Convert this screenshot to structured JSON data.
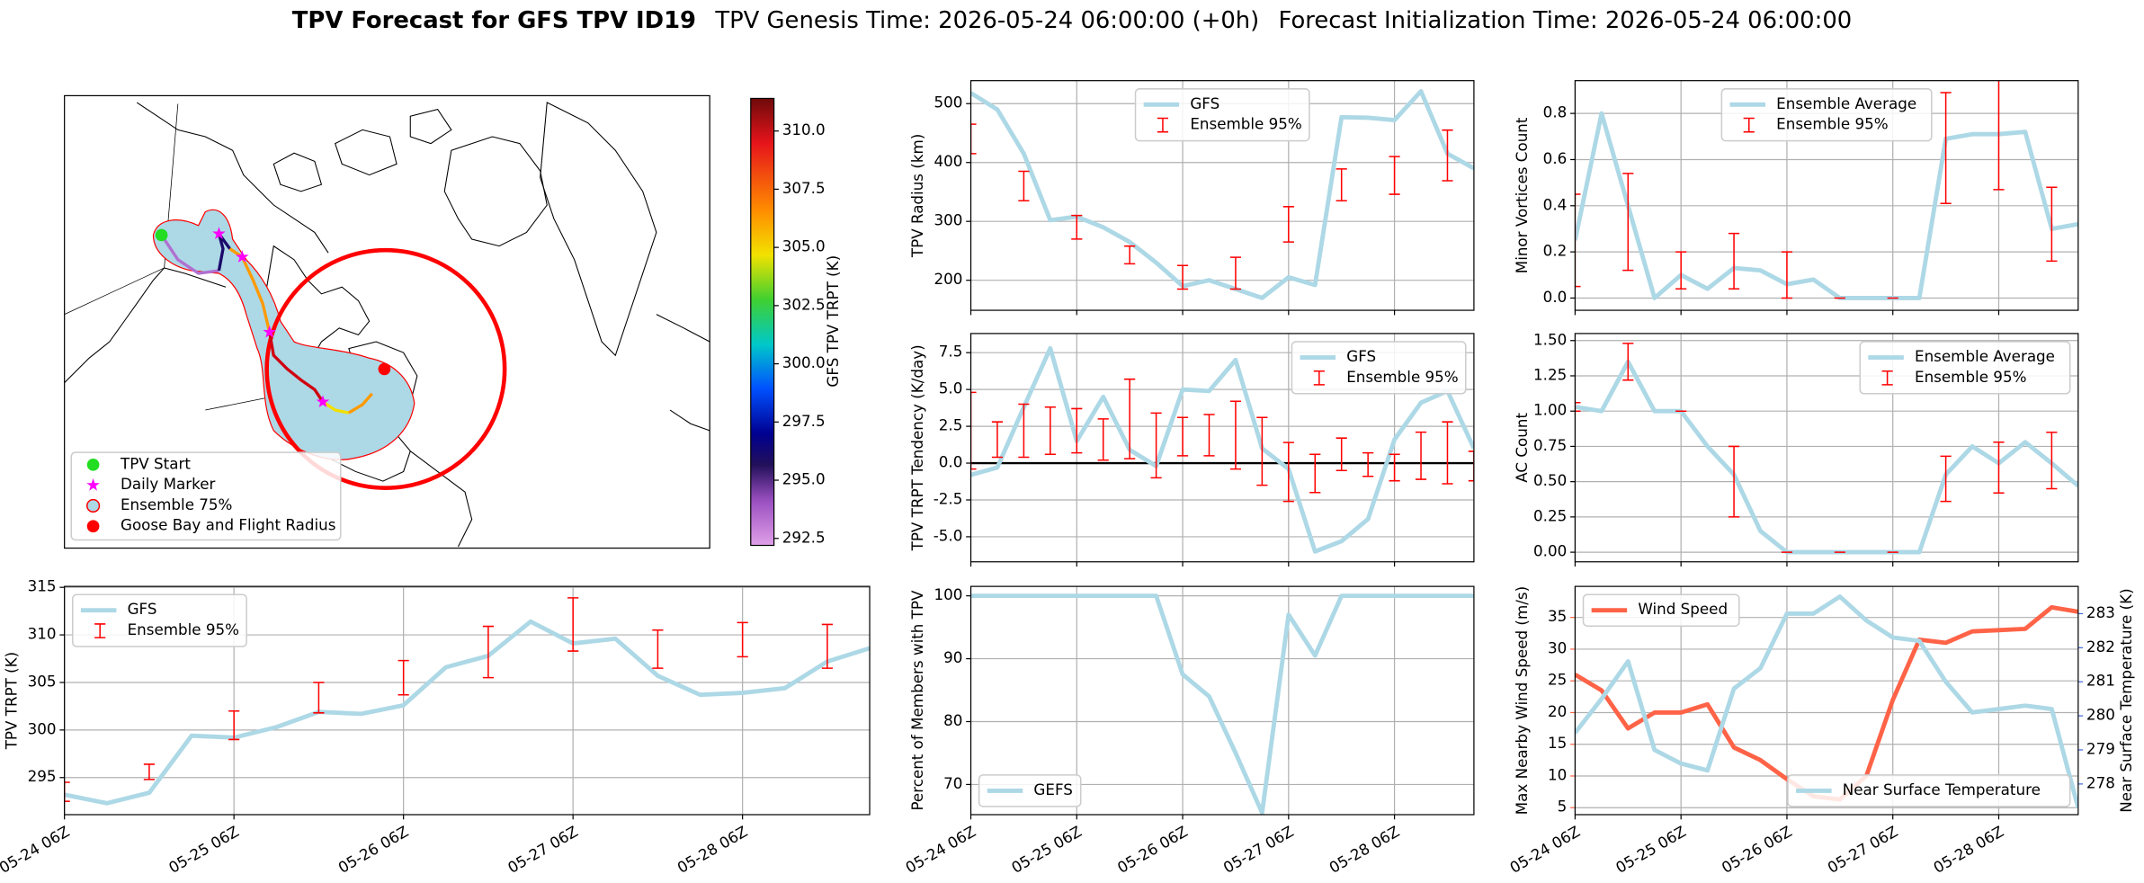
{
  "suptitle": {
    "title": "TPV Forecast for GFS TPV ID19",
    "genesis": "TPV Genesis Time: 2026-05-24 06:00:00 (+0h)",
    "init": "Forecast Initialization Time: 2026-05-24 06:00:00"
  },
  "chart_data": [
    {
      "type": "map",
      "legend": [
        "TPV Start",
        "Daily Marker",
        "Ensemble 75%",
        "Goose Bay and Flight Radius"
      ],
      "colorbar_label": "GFS TPV TRPT (K)",
      "clim": [
        292.2,
        311.4
      ],
      "colorbar_ticks": [
        292.5,
        {
          "value": 295,
          "label": "295.0"
        },
        297.5,
        {
          "value": 300,
          "label": "300.0"
        },
        302.5,
        {
          "value": 305,
          "label": "305.0"
        },
        307.5,
        {
          "value": 310,
          "label": "310.0"
        }
      ]
    },
    {
      "type": "line",
      "ylabel": "TPV Radius (km)",
      "ylim": [
        149,
        539
      ],
      "yticks": [
        200,
        300,
        400,
        500
      ],
      "grid": true,
      "legend": "upper center",
      "x": [
        "05-24 06Z",
        "05-24 12Z",
        "05-24 18Z",
        "05-25 00Z",
        "05-25 06Z",
        "05-25 12Z",
        "05-25 18Z",
        "05-26 00Z",
        "05-26 06Z",
        "05-26 12Z",
        "05-26 18Z",
        "05-27 00Z",
        "05-27 06Z",
        "05-27 12Z",
        "05-27 18Z",
        "05-28 00Z",
        "05-28 06Z",
        "05-28 12Z",
        "05-28 18Z",
        "05-29 00Z"
      ],
      "series": [
        {
          "name": "GFS",
          "color": "lightblue",
          "values": [
            518,
            490,
            415,
            302,
            308,
            290,
            265,
            230,
            190,
            200,
            185,
            170,
            205,
            192,
            477,
            476,
            472,
            521,
            415,
            390
          ]
        },
        {
          "name": "Ensemble 95%",
          "color": "red",
          "x": [
            "05-24 06Z",
            "05-24 18Z",
            "05-25 06Z",
            "05-25 18Z",
            "05-26 06Z",
            "05-26 18Z",
            "05-27 06Z",
            "05-27 18Z",
            "05-28 06Z",
            "05-28 18Z"
          ],
          "values": [
            440,
            360,
            290,
            243,
            205,
            212,
            295,
            362,
            378,
            412
          ],
          "errors": [
            25,
            25,
            20,
            15,
            20,
            27,
            30,
            27,
            32,
            43
          ]
        }
      ]
    },
    {
      "type": "line",
      "ylabel": "TPV TRPT Tendency (K/day)",
      "ylim": [
        -6.7,
        8.8
      ],
      "yticks": [
        {
          "value": -5,
          "label": "-5.0"
        },
        -2.5,
        {
          "value": 0,
          "label": "0.0"
        },
        2.5,
        {
          "value": 5,
          "label": "5.0"
        },
        7.5
      ],
      "grid": true,
      "hline": 0,
      "legend": "upper right",
      "x": [
        "05-24 06Z",
        "05-24 12Z",
        "05-24 18Z",
        "05-25 00Z",
        "05-25 06Z",
        "05-25 12Z",
        "05-25 18Z",
        "05-26 00Z",
        "05-26 06Z",
        "05-26 12Z",
        "05-26 18Z",
        "05-27 00Z",
        "05-27 06Z",
        "05-27 12Z",
        "05-27 18Z",
        "05-28 00Z",
        "05-28 06Z",
        "05-28 12Z",
        "05-28 18Z",
        "05-29 00Z"
      ],
      "series": [
        {
          "name": "GFS",
          "color": "lightblue",
          "values": [
            -0.8,
            -0.3,
            3.8,
            7.8,
            1.5,
            4.5,
            0.9,
            -0.2,
            5.0,
            4.9,
            7.0,
            1.0,
            -0.4,
            -6.0,
            -5.3,
            -3.8,
            1.6,
            4.1,
            4.9,
            1.0
          ]
        },
        {
          "name": "Ensemble 95%",
          "color": "red",
          "values": [
            2.2,
            1.6,
            2.2,
            2.2,
            2.2,
            1.6,
            3.0,
            1.2,
            1.8,
            1.9,
            1.9,
            0.8,
            -0.6,
            -0.7,
            0.6,
            -0.1,
            -0.3,
            0.5,
            0.7,
            -0.2
          ],
          "errors": [
            2.6,
            1.2,
            1.8,
            1.6,
            1.5,
            1.4,
            2.7,
            2.2,
            1.3,
            1.4,
            2.3,
            2.3,
            2.0,
            1.3,
            1.1,
            0.8,
            0.9,
            1.6,
            2.1,
            1.0
          ]
        }
      ]
    },
    {
      "type": "line",
      "ylabel": "Percent of Members with TPV",
      "ylim": [
        65.2,
        101.5
      ],
      "yticks": [
        70,
        80,
        90,
        100
      ],
      "grid": true,
      "legend": "lower left",
      "xlim": [
        "05-24 06Z",
        "05-29 00Z"
      ],
      "xticks": [
        "05-24 06Z",
        "05-25 06Z",
        "05-26 06Z",
        "05-27 06Z",
        "05-28 06Z"
      ],
      "x": [
        "05-24 06Z",
        "05-24 12Z",
        "05-24 18Z",
        "05-25 00Z",
        "05-25 06Z",
        "05-25 12Z",
        "05-25 18Z",
        "05-26 00Z",
        "05-26 06Z",
        "05-26 12Z",
        "05-26 18Z",
        "05-27 00Z",
        "05-27 06Z",
        "05-27 12Z",
        "05-27 18Z",
        "05-28 00Z",
        "05-28 06Z",
        "05-28 12Z",
        "05-28 18Z",
        "05-29 00Z"
      ],
      "series": [
        {
          "name": "GEFS",
          "color": "lightblue",
          "values": [
            100,
            100,
            100,
            100,
            100,
            100,
            100,
            100,
            87.5,
            84,
            75,
            65.5,
            97,
            90.5,
            100,
            100,
            100,
            100,
            100,
            100
          ]
        }
      ]
    },
    {
      "type": "line",
      "ylabel": "TPV TRPT (K)",
      "ylim": [
        291.1,
        315.1
      ],
      "yticks": [
        295,
        300,
        305,
        310,
        315
      ],
      "grid": true,
      "legend": "upper left",
      "xlim": [
        "05-24 06Z",
        "05-29 00Z"
      ],
      "xticks": [
        "05-24 06Z",
        "05-25 06Z",
        "05-26 06Z",
        "05-27 06Z",
        "05-28 06Z"
      ],
      "x": [
        "05-24 06Z",
        "05-24 12Z",
        "05-24 18Z",
        "05-25 00Z",
        "05-25 06Z",
        "05-25 12Z",
        "05-25 18Z",
        "05-26 00Z",
        "05-26 06Z",
        "05-26 12Z",
        "05-26 18Z",
        "05-27 00Z",
        "05-27 06Z",
        "05-27 12Z",
        "05-27 18Z",
        "05-28 00Z",
        "05-28 06Z",
        "05-28 12Z",
        "05-28 18Z",
        "05-29 00Z"
      ],
      "series": [
        {
          "name": "GFS",
          "color": "lightblue",
          "values": [
            293.2,
            292.3,
            293.4,
            299.4,
            299.2,
            300.3,
            301.9,
            301.7,
            302.6,
            306.6,
            307.8,
            311.4,
            309.1,
            309.6,
            305.7,
            303.7,
            303.9,
            304.4,
            307.2,
            308.6
          ]
        },
        {
          "name": "Ensemble 95%",
          "color": "red",
          "x": [
            "05-24 06Z",
            "05-24 18Z",
            "05-25 06Z",
            "05-25 18Z",
            "05-26 06Z",
            "05-26 18Z",
            "05-27 06Z",
            "05-27 18Z",
            "05-28 06Z",
            "05-28 18Z"
          ],
          "values": [
            293.5,
            295.6,
            300.5,
            303.4,
            305.5,
            308.2,
            311.1,
            308.5,
            309.5,
            308.8
          ],
          "errors": [
            1,
            0.8,
            1.5,
            1.6,
            1.8,
            2.7,
            2.8,
            2,
            1.8,
            2.3
          ]
        }
      ]
    },
    {
      "type": "line",
      "ylabel": "Minor Vortices Count",
      "ylim": [
        -0.053,
        0.942
      ],
      "yticks": [
        {
          "value": 0,
          "label": "0.0"
        },
        0.2,
        0.4,
        0.6,
        0.8
      ],
      "grid": true,
      "legend": "upper center",
      "x": [
        "05-24 06Z",
        "05-24 12Z",
        "05-24 18Z",
        "05-25 00Z",
        "05-25 06Z",
        "05-25 12Z",
        "05-25 18Z",
        "05-26 00Z",
        "05-26 06Z",
        "05-26 12Z",
        "05-26 18Z",
        "05-27 00Z",
        "05-27 06Z",
        "05-27 12Z",
        "05-27 18Z",
        "05-28 00Z",
        "05-28 06Z",
        "05-28 12Z",
        "05-28 18Z",
        "05-29 00Z"
      ],
      "series": [
        {
          "name": "Ensemble Average",
          "color": "lightblue",
          "values": [
            0.25,
            0.8,
            0.4,
            0,
            0.1,
            0.04,
            0.13,
            0.12,
            0.06,
            0.08,
            0,
            0,
            0,
            0,
            0.69,
            0.71,
            0.71,
            0.72,
            0.3,
            0.32
          ]
        },
        {
          "name": "Ensemble 95%",
          "color": "red",
          "x": [
            "05-24 06Z",
            "05-24 18Z",
            "05-25 06Z",
            "05-25 18Z",
            "05-26 06Z",
            "05-26 18Z",
            "05-27 06Z",
            "05-27 18Z",
            "05-28 06Z",
            "05-28 18Z"
          ],
          "values": [
            0.25,
            0.33,
            0.12,
            0.16,
            0.1,
            0,
            0,
            0.65,
            0.71,
            0.32
          ],
          "errors": [
            0.2,
            0.21,
            0.08,
            0.12,
            0.1,
            0,
            0,
            0.24,
            0.24,
            0.16
          ]
        }
      ]
    },
    {
      "type": "line",
      "ylabel": "AC Count",
      "ylim": [
        -0.068,
        1.55
      ],
      "yticks": [
        {
          "value": 0,
          "label": "0.00"
        },
        0.25,
        {
          "value": 0.5,
          "label": "0.50"
        },
        0.75,
        {
          "value": 1,
          "label": "1.00"
        },
        1.25,
        {
          "value": 1.5,
          "label": "1.50"
        }
      ],
      "grid": true,
      "legend": "upper right",
      "x": [
        "05-24 06Z",
        "05-24 12Z",
        "05-24 18Z",
        "05-25 00Z",
        "05-25 06Z",
        "05-25 12Z",
        "05-25 18Z",
        "05-26 00Z",
        "05-26 06Z",
        "05-26 12Z",
        "05-26 18Z",
        "05-27 00Z",
        "05-27 06Z",
        "05-27 12Z",
        "05-27 18Z",
        "05-28 00Z",
        "05-28 06Z",
        "05-28 12Z",
        "05-28 18Z",
        "05-29 00Z"
      ],
      "series": [
        {
          "name": "Ensemble Average",
          "color": "lightblue",
          "values": [
            1.03,
            1.0,
            1.35,
            1.0,
            1.0,
            0.75,
            0.55,
            0.15,
            0,
            0,
            0,
            0,
            0,
            0,
            0.55,
            0.75,
            0.63,
            0.78,
            0.63,
            0.47
          ]
        },
        {
          "name": "Ensemble 95%",
          "color": "red",
          "x": [
            "05-24 06Z",
            "05-24 18Z",
            "05-25 06Z",
            "05-25 18Z",
            "05-26 06Z",
            "05-26 18Z",
            "05-27 06Z",
            "05-27 18Z",
            "05-28 06Z",
            "05-28 18Z"
          ],
          "values": [
            1.03,
            1.35,
            1.0,
            0.5,
            0,
            0,
            0,
            0.52,
            0.6,
            0.65
          ],
          "errors": [
            0.03,
            0.13,
            0,
            0.25,
            0,
            0,
            0,
            0.16,
            0.18,
            0.2
          ]
        }
      ]
    },
    {
      "type": "line",
      "ylabel": "Max Nearby Wind Speed (m/s)",
      "ylabel_color": "tomato",
      "y2label": "Near Surface Temperature (K)",
      "y2label_color": "royalblue",
      "ylim": [
        3.9,
        39.9
      ],
      "yticks": [
        5,
        10,
        15,
        20,
        25,
        30,
        35
      ],
      "y2lim": [
        277.1,
        283.8
      ],
      "y2ticks": [
        278,
        279,
        280,
        281,
        282,
        283
      ],
      "grid": true,
      "legend": "upper left",
      "legend2": "lower right",
      "xlim": [
        "05-24 06Z",
        "05-29 00Z"
      ],
      "xticks": [
        "05-24 06Z",
        "05-25 06Z",
        "05-26 06Z",
        "05-27 06Z",
        "05-28 06Z"
      ],
      "x": [
        "05-24 06Z",
        "05-24 12Z",
        "05-24 18Z",
        "05-25 00Z",
        "05-25 06Z",
        "05-25 12Z",
        "05-25 18Z",
        "05-26 00Z",
        "05-26 06Z",
        "05-26 12Z",
        "05-26 18Z",
        "05-27 00Z",
        "05-27 06Z",
        "05-27 12Z",
        "05-27 18Z",
        "05-28 00Z",
        "05-28 06Z",
        "05-28 12Z",
        "05-28 18Z",
        "05-29 00Z"
      ],
      "series": [
        {
          "name": "Wind Speed",
          "color": "tomato",
          "values": [
            26,
            23.5,
            17.5,
            20,
            20,
            21.3,
            14.5,
            12.5,
            9.5,
            6.8,
            6.3,
            10,
            22,
            31.5,
            31,
            32.8,
            33,
            33.2,
            36.6,
            35.9
          ]
        },
        {
          "name": "Near Surface Temperature",
          "color": "lightblue",
          "axis": "y2",
          "values": [
            279.5,
            280.5,
            281.6,
            279.0,
            278.6,
            278.4,
            280.8,
            281.4,
            283.0,
            283.0,
            283.5,
            282.8,
            282.3,
            282.2,
            281.0,
            280.1,
            280.2,
            280.3,
            280.2,
            277.3
          ]
        }
      ]
    }
  ]
}
